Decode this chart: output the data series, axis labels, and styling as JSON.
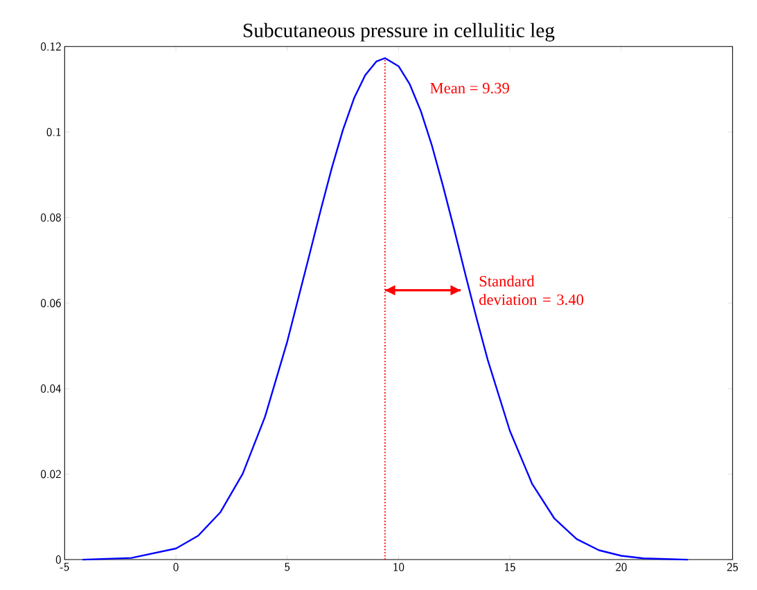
{
  "chart_data": {
    "type": "line",
    "title": "Subcutaneous pressure in cellulitic leg",
    "x": [
      -4.2,
      -2,
      0,
      1,
      2,
      3,
      4,
      5,
      6,
      6.5,
      7,
      7.5,
      8,
      8.5,
      9,
      9.39,
      10,
      10.5,
      11,
      11.5,
      12,
      12.5,
      13,
      13.5,
      14,
      15,
      16,
      17,
      18,
      19,
      20,
      21,
      23
    ],
    "series": [
      {
        "color": "#0000ff",
        "values": [
          0.0,
          0.0004,
          0.0026,
          0.0056,
          0.0111,
          0.0201,
          0.0334,
          0.051,
          0.0714,
          0.0817,
          0.0916,
          0.1005,
          0.1079,
          0.1133,
          0.1165,
          0.1173,
          0.1154,
          0.1112,
          0.1049,
          0.0968,
          0.0873,
          0.0772,
          0.0667,
          0.0565,
          0.0468,
          0.0301,
          0.0177,
          0.0096,
          0.0048,
          0.0022,
          0.0009,
          0.0003,
          0.0
        ]
      },
      {
        "type": "line",
        "color": "#ff0000",
        "x": [
          9.39,
          12.79
        ],
        "values": [
          0.063,
          0.063
        ]
      }
    ],
    "xlim": [
      -5,
      25
    ],
    "ylim": [
      0,
      0.12
    ],
    "xticks": [
      -5,
      0,
      5,
      10,
      15,
      20,
      25
    ],
    "yticks": [
      0,
      0.02,
      0.04,
      0.06,
      0.08,
      0.1,
      0.12
    ],
    "grid": false,
    "marker": "none",
    "line_style": "solid",
    "ref_lines": [
      {
        "axis": "x",
        "value": 9.39,
        "label": "Mean = 9.39",
        "color": "#ff0000",
        "line_style": "dotted"
      }
    ],
    "annotations": [
      "Standard deviation = 3.40"
    ]
  }
}
